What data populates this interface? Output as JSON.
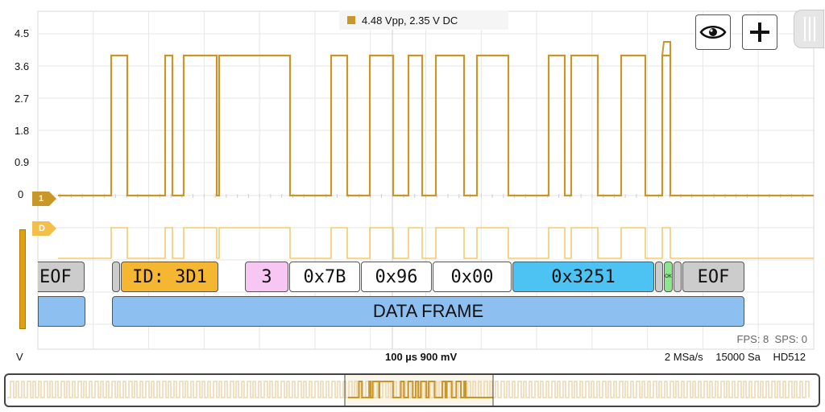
{
  "measurement": {
    "text": "4.48 Vpp, 2.35 V DC",
    "color": "#c9962a"
  },
  "y_axis": {
    "labels": [
      "4.5",
      "3.6",
      "2.7",
      "1.8",
      "0.9",
      "0"
    ],
    "unit": "V"
  },
  "channels": {
    "ch1_label": "1",
    "digital_label": "D"
  },
  "decode": {
    "boxes": [
      {
        "name": "eof-left",
        "text": "EOF",
        "color": "#cccccc"
      },
      {
        "name": "sof",
        "text": "",
        "color": "#cccccc"
      },
      {
        "name": "id",
        "text": "ID: 3D1",
        "color": "#f5b731"
      },
      {
        "name": "dlc",
        "text": "3",
        "color": "#f7c6f3"
      },
      {
        "name": "byte-0",
        "text": "0x7B",
        "color": "#ffffff"
      },
      {
        "name": "byte-1",
        "text": "0x96",
        "color": "#ffffff"
      },
      {
        "name": "byte-2",
        "text": "0x00",
        "color": "#ffffff"
      },
      {
        "name": "crc",
        "text": "0x3251",
        "color": "#4cc3f2"
      },
      {
        "name": "crc-delim",
        "text": "",
        "color": "#cccccc"
      },
      {
        "name": "ack",
        "text": "OK",
        "color": "#8ae88a"
      },
      {
        "name": "ack-delim",
        "text": "",
        "color": "#cccccc"
      },
      {
        "name": "eof-right",
        "text": "EOF",
        "color": "#cccccc"
      }
    ],
    "frame_label": "DATA FRAME",
    "frame_color": "#8dbff0"
  },
  "stats": {
    "fps": "FPS: 8",
    "sps": "SPS: 0"
  },
  "bottom": {
    "timebase": "100 µs  900 mV",
    "sample_rate": "2 MSa/s",
    "samples": "15000 Sa",
    "mode": "HD512"
  },
  "colors": {
    "trace": "#c9962a",
    "digital": "#f2c04a",
    "grid": "#e6e6e6"
  }
}
